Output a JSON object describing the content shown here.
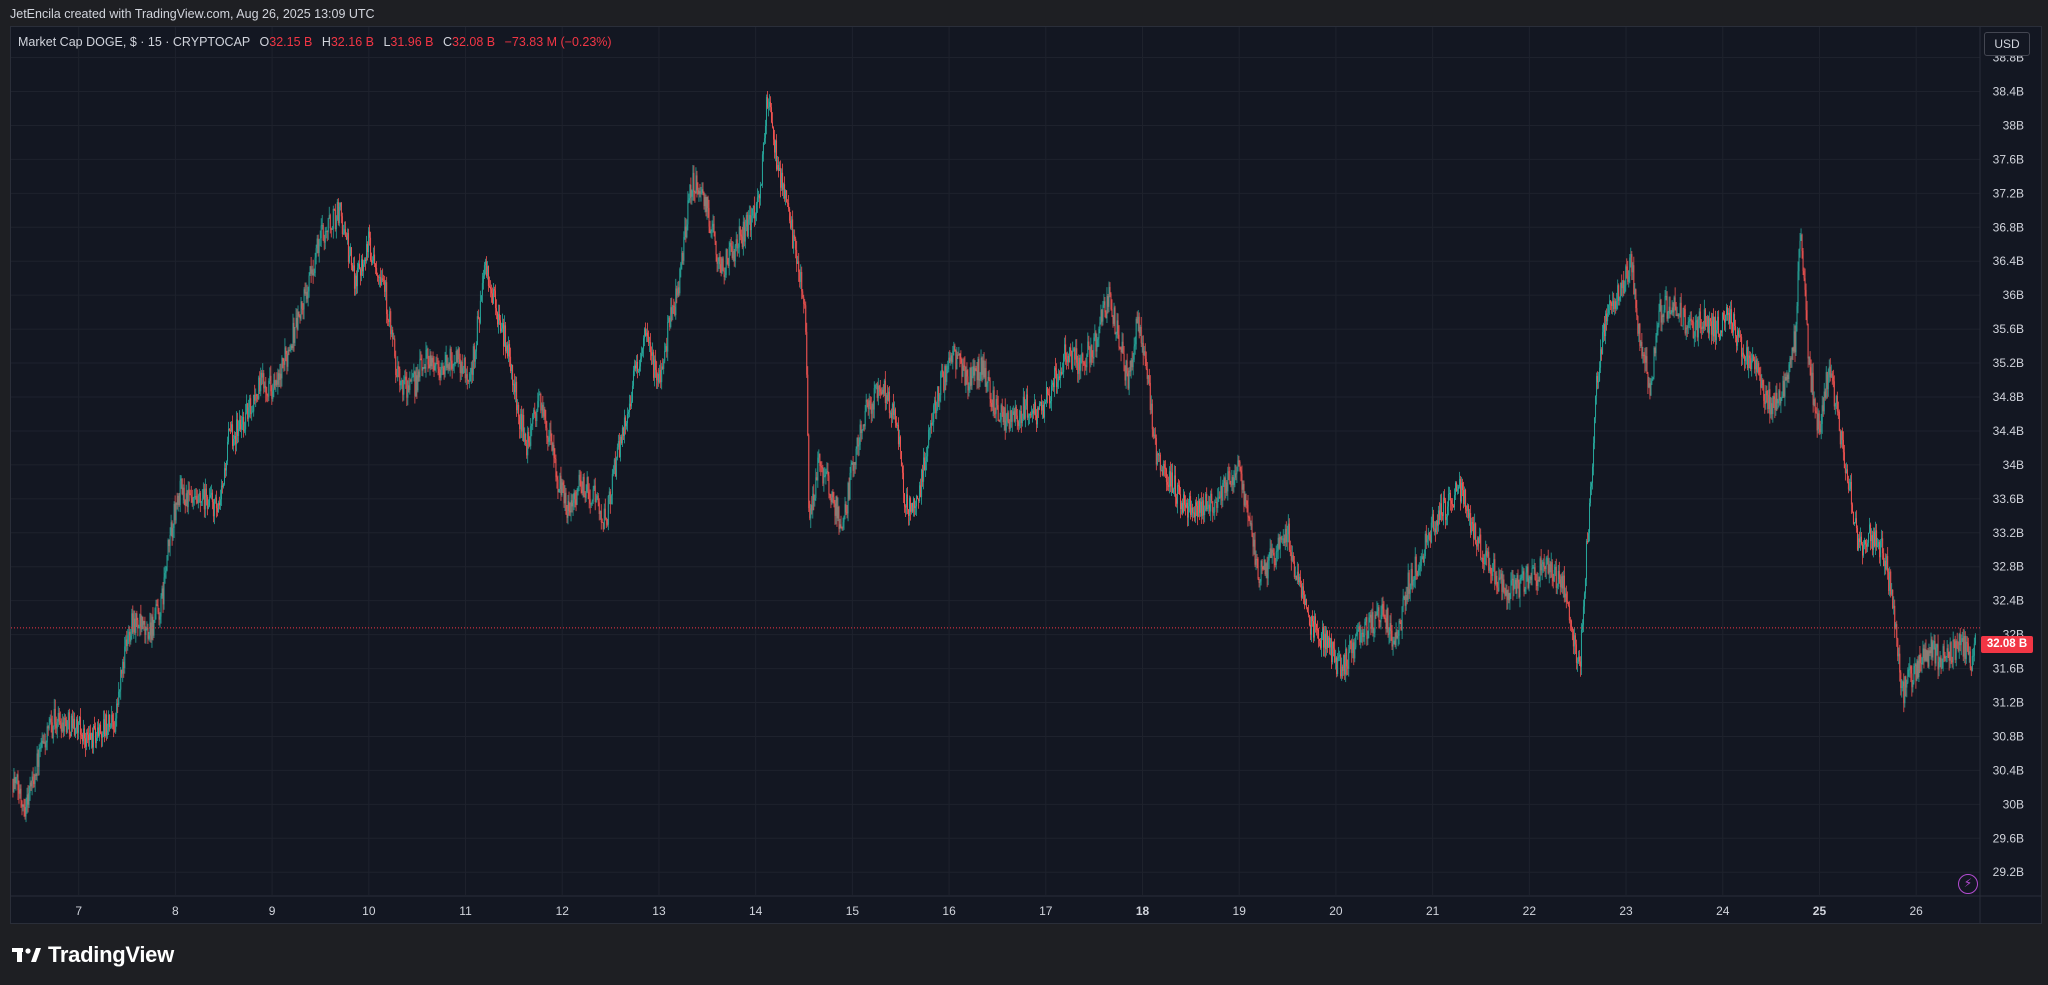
{
  "header": {
    "attribution": "JetEncila created with TradingView.com, Aug 26, 2025 13:09 UTC"
  },
  "legend": {
    "symbol": "Market Cap DOGE, $ · 15 · CRYPTOCAP",
    "open_label": "O",
    "open": "32.15 B",
    "high_label": "H",
    "high": "32.16 B",
    "low_label": "L",
    "low": "31.96 B",
    "close_label": "C",
    "close": "32.08 B",
    "change": "−73.83 M (−0.23%)"
  },
  "currency_button": "USD",
  "last_price_tag": "32.08 B",
  "footer": {
    "brand": "TradingView"
  },
  "colors": {
    "up": "#26a69a",
    "down": "#ef5350",
    "background": "#131722",
    "grid": "#1e222d",
    "last_price": "#f23645"
  },
  "icons": {
    "alert": "lightning-bolt-icon",
    "logo": "tradingview-logo-icon"
  },
  "chart_data": {
    "type": "line",
    "style": "candlestick",
    "title": "Market Cap DOGE, $ · 15 · CRYPTOCAP",
    "ylabel": "",
    "xlabel": "",
    "y_unit": "B",
    "ylim": [
      29.0,
      39.1
    ],
    "y_ticks": [
      29.2,
      29.6,
      30.0,
      30.4,
      30.8,
      31.2,
      31.6,
      32.0,
      32.4,
      32.8,
      33.2,
      33.6,
      34.0,
      34.4,
      34.8,
      35.2,
      35.6,
      36.0,
      36.4,
      36.8,
      37.2,
      37.6,
      38.0,
      38.4,
      38.8
    ],
    "y_tick_labels": [
      "29.2B",
      "29.6B",
      "30B",
      "30.4B",
      "30.8B",
      "31.2B",
      "31.6B",
      "32B",
      "32.4B",
      "32.8B",
      "33.2B",
      "33.6B",
      "34B",
      "34.4B",
      "34.8B",
      "35.2B",
      "35.6B",
      "36B",
      "36.4B",
      "36.8B",
      "37.2B",
      "37.6B",
      "38B",
      "38.4B",
      "38.8B"
    ],
    "x_ticks": [
      {
        "label": "7",
        "day": 7,
        "bold": false
      },
      {
        "label": "8",
        "day": 8,
        "bold": false
      },
      {
        "label": "9",
        "day": 9,
        "bold": false
      },
      {
        "label": "10",
        "day": 10,
        "bold": false
      },
      {
        "label": "11",
        "day": 11,
        "bold": false
      },
      {
        "label": "12",
        "day": 12,
        "bold": false
      },
      {
        "label": "13",
        "day": 13,
        "bold": false
      },
      {
        "label": "14",
        "day": 14,
        "bold": false
      },
      {
        "label": "15",
        "day": 15,
        "bold": false
      },
      {
        "label": "16",
        "day": 16,
        "bold": false
      },
      {
        "label": "17",
        "day": 17,
        "bold": false
      },
      {
        "label": "18",
        "day": 18,
        "bold": true
      },
      {
        "label": "19",
        "day": 19,
        "bold": false
      },
      {
        "label": "20",
        "day": 20,
        "bold": false
      },
      {
        "label": "21",
        "day": 21,
        "bold": false
      },
      {
        "label": "22",
        "day": 22,
        "bold": false
      },
      {
        "label": "23",
        "day": 23,
        "bold": false
      },
      {
        "label": "24",
        "day": 24,
        "bold": false
      },
      {
        "label": "25",
        "day": 25,
        "bold": true
      },
      {
        "label": "26",
        "day": 26,
        "bold": false
      }
    ],
    "x_range_days": [
      6.3,
      26.66
    ],
    "series": [
      {
        "points": [
          {
            "x": 6.32,
            "y": 30.3
          },
          {
            "x": 6.45,
            "y": 30.0
          },
          {
            "x": 6.6,
            "y": 30.6
          },
          {
            "x": 6.75,
            "y": 31.0
          },
          {
            "x": 6.95,
            "y": 30.95
          },
          {
            "x": 7.1,
            "y": 30.75
          },
          {
            "x": 7.25,
            "y": 30.9
          },
          {
            "x": 7.38,
            "y": 31.0
          },
          {
            "x": 7.45,
            "y": 31.6
          },
          {
            "x": 7.55,
            "y": 32.2
          },
          {
            "x": 7.7,
            "y": 32.0
          },
          {
            "x": 7.85,
            "y": 32.3
          },
          {
            "x": 7.95,
            "y": 33.2
          },
          {
            "x": 8.05,
            "y": 33.7
          },
          {
            "x": 8.2,
            "y": 33.5
          },
          {
            "x": 8.35,
            "y": 33.6
          },
          {
            "x": 8.45,
            "y": 33.4
          },
          {
            "x": 8.55,
            "y": 34.3
          },
          {
            "x": 8.7,
            "y": 34.5
          },
          {
            "x": 8.9,
            "y": 35.0
          },
          {
            "x": 9.05,
            "y": 34.9
          },
          {
            "x": 9.2,
            "y": 35.5
          },
          {
            "x": 9.35,
            "y": 36.0
          },
          {
            "x": 9.5,
            "y": 36.7
          },
          {
            "x": 9.7,
            "y": 37.0
          },
          {
            "x": 9.85,
            "y": 36.2
          },
          {
            "x": 10.0,
            "y": 36.6
          },
          {
            "x": 10.15,
            "y": 36.2
          },
          {
            "x": 10.3,
            "y": 35.0
          },
          {
            "x": 10.45,
            "y": 34.9
          },
          {
            "x": 10.6,
            "y": 35.3
          },
          {
            "x": 10.75,
            "y": 35.1
          },
          {
            "x": 10.9,
            "y": 35.3
          },
          {
            "x": 11.05,
            "y": 35.0
          },
          {
            "x": 11.2,
            "y": 36.3
          },
          {
            "x": 11.35,
            "y": 35.7
          },
          {
            "x": 11.45,
            "y": 35.3
          },
          {
            "x": 11.55,
            "y": 34.6
          },
          {
            "x": 11.65,
            "y": 34.2
          },
          {
            "x": 11.75,
            "y": 34.8
          },
          {
            "x": 11.85,
            "y": 34.4
          },
          {
            "x": 11.95,
            "y": 33.8
          },
          {
            "x": 12.05,
            "y": 33.5
          },
          {
            "x": 12.2,
            "y": 33.8
          },
          {
            "x": 12.35,
            "y": 33.6
          },
          {
            "x": 12.45,
            "y": 33.3
          },
          {
            "x": 12.55,
            "y": 34.0
          },
          {
            "x": 12.7,
            "y": 34.8
          },
          {
            "x": 12.85,
            "y": 35.5
          },
          {
            "x": 13.0,
            "y": 35.0
          },
          {
            "x": 13.1,
            "y": 35.6
          },
          {
            "x": 13.2,
            "y": 36.1
          },
          {
            "x": 13.35,
            "y": 37.4
          },
          {
            "x": 13.5,
            "y": 37.0
          },
          {
            "x": 13.65,
            "y": 36.3
          },
          {
            "x": 13.8,
            "y": 36.6
          },
          {
            "x": 13.95,
            "y": 36.9
          },
          {
            "x": 14.05,
            "y": 37.3
          },
          {
            "x": 14.12,
            "y": 38.3
          },
          {
            "x": 14.22,
            "y": 37.6
          },
          {
            "x": 14.35,
            "y": 36.9
          },
          {
            "x": 14.45,
            "y": 36.3
          },
          {
            "x": 14.52,
            "y": 35.7
          },
          {
            "x": 14.55,
            "y": 33.3
          },
          {
            "x": 14.65,
            "y": 34.0
          },
          {
            "x": 14.8,
            "y": 33.6
          },
          {
            "x": 14.9,
            "y": 33.2
          },
          {
            "x": 15.0,
            "y": 34.0
          },
          {
            "x": 15.15,
            "y": 34.7
          },
          {
            "x": 15.3,
            "y": 34.9
          },
          {
            "x": 15.45,
            "y": 34.6
          },
          {
            "x": 15.55,
            "y": 33.5
          },
          {
            "x": 15.7,
            "y": 33.7
          },
          {
            "x": 15.8,
            "y": 34.4
          },
          {
            "x": 15.9,
            "y": 34.9
          },
          {
            "x": 16.05,
            "y": 35.3
          },
          {
            "x": 16.2,
            "y": 35.0
          },
          {
            "x": 16.35,
            "y": 35.2
          },
          {
            "x": 16.5,
            "y": 34.6
          },
          {
            "x": 16.65,
            "y": 34.5
          },
          {
            "x": 16.8,
            "y": 34.7
          },
          {
            "x": 16.95,
            "y": 34.6
          },
          {
            "x": 17.05,
            "y": 34.9
          },
          {
            "x": 17.2,
            "y": 35.3
          },
          {
            "x": 17.35,
            "y": 35.2
          },
          {
            "x": 17.5,
            "y": 35.4
          },
          {
            "x": 17.65,
            "y": 36.0
          },
          {
            "x": 17.75,
            "y": 35.5
          },
          {
            "x": 17.85,
            "y": 35.0
          },
          {
            "x": 17.95,
            "y": 35.7
          },
          {
            "x": 18.05,
            "y": 35.0
          },
          {
            "x": 18.15,
            "y": 34.1
          },
          {
            "x": 18.3,
            "y": 33.8
          },
          {
            "x": 18.45,
            "y": 33.5
          },
          {
            "x": 18.6,
            "y": 33.5
          },
          {
            "x": 18.75,
            "y": 33.6
          },
          {
            "x": 18.9,
            "y": 33.8
          },
          {
            "x": 19.0,
            "y": 34.0
          },
          {
            "x": 19.1,
            "y": 33.3
          },
          {
            "x": 19.2,
            "y": 32.7
          },
          {
            "x": 19.35,
            "y": 32.9
          },
          {
            "x": 19.5,
            "y": 33.2
          },
          {
            "x": 19.6,
            "y": 32.6
          },
          {
            "x": 19.75,
            "y": 32.1
          },
          {
            "x": 19.9,
            "y": 31.9
          },
          {
            "x": 20.05,
            "y": 31.6
          },
          {
            "x": 20.2,
            "y": 31.9
          },
          {
            "x": 20.35,
            "y": 32.1
          },
          {
            "x": 20.5,
            "y": 32.3
          },
          {
            "x": 20.6,
            "y": 31.8
          },
          {
            "x": 20.75,
            "y": 32.6
          },
          {
            "x": 20.9,
            "y": 33.0
          },
          {
            "x": 21.05,
            "y": 33.4
          },
          {
            "x": 21.2,
            "y": 33.6
          },
          {
            "x": 21.3,
            "y": 33.7
          },
          {
            "x": 21.45,
            "y": 33.1
          },
          {
            "x": 21.6,
            "y": 32.8
          },
          {
            "x": 21.75,
            "y": 32.5
          },
          {
            "x": 21.9,
            "y": 32.6
          },
          {
            "x": 22.05,
            "y": 32.7
          },
          {
            "x": 22.2,
            "y": 32.8
          },
          {
            "x": 22.35,
            "y": 32.6
          },
          {
            "x": 22.45,
            "y": 32.0
          },
          {
            "x": 22.52,
            "y": 31.6
          },
          {
            "x": 22.62,
            "y": 33.5
          },
          {
            "x": 22.7,
            "y": 35.0
          },
          {
            "x": 22.8,
            "y": 35.8
          },
          {
            "x": 22.95,
            "y": 36.1
          },
          {
            "x": 23.05,
            "y": 36.4
          },
          {
            "x": 23.15,
            "y": 35.4
          },
          {
            "x": 23.25,
            "y": 34.9
          },
          {
            "x": 23.35,
            "y": 35.8
          },
          {
            "x": 23.5,
            "y": 35.9
          },
          {
            "x": 23.65,
            "y": 35.6
          },
          {
            "x": 23.8,
            "y": 35.7
          },
          {
            "x": 23.95,
            "y": 35.6
          },
          {
            "x": 24.05,
            "y": 35.8
          },
          {
            "x": 24.2,
            "y": 35.4
          },
          {
            "x": 24.35,
            "y": 35.1
          },
          {
            "x": 24.5,
            "y": 34.7
          },
          {
            "x": 24.65,
            "y": 34.9
          },
          {
            "x": 24.75,
            "y": 35.5
          },
          {
            "x": 24.8,
            "y": 36.8
          },
          {
            "x": 24.9,
            "y": 35.1
          },
          {
            "x": 25.0,
            "y": 34.4
          },
          {
            "x": 25.1,
            "y": 35.2
          },
          {
            "x": 25.2,
            "y": 34.5
          },
          {
            "x": 25.3,
            "y": 33.8
          },
          {
            "x": 25.4,
            "y": 33.0
          },
          {
            "x": 25.5,
            "y": 33.2
          },
          {
            "x": 25.65,
            "y": 33.0
          },
          {
            "x": 25.75,
            "y": 32.5
          },
          {
            "x": 25.85,
            "y": 31.3
          },
          {
            "x": 26.0,
            "y": 31.6
          },
          {
            "x": 26.15,
            "y": 31.8
          },
          {
            "x": 26.3,
            "y": 31.7
          },
          {
            "x": 26.45,
            "y": 31.9
          },
          {
            "x": 26.58,
            "y": 31.7
          },
          {
            "x": 26.62,
            "y": 32.08
          }
        ]
      }
    ],
    "last_price": 32.08,
    "grid": true
  }
}
